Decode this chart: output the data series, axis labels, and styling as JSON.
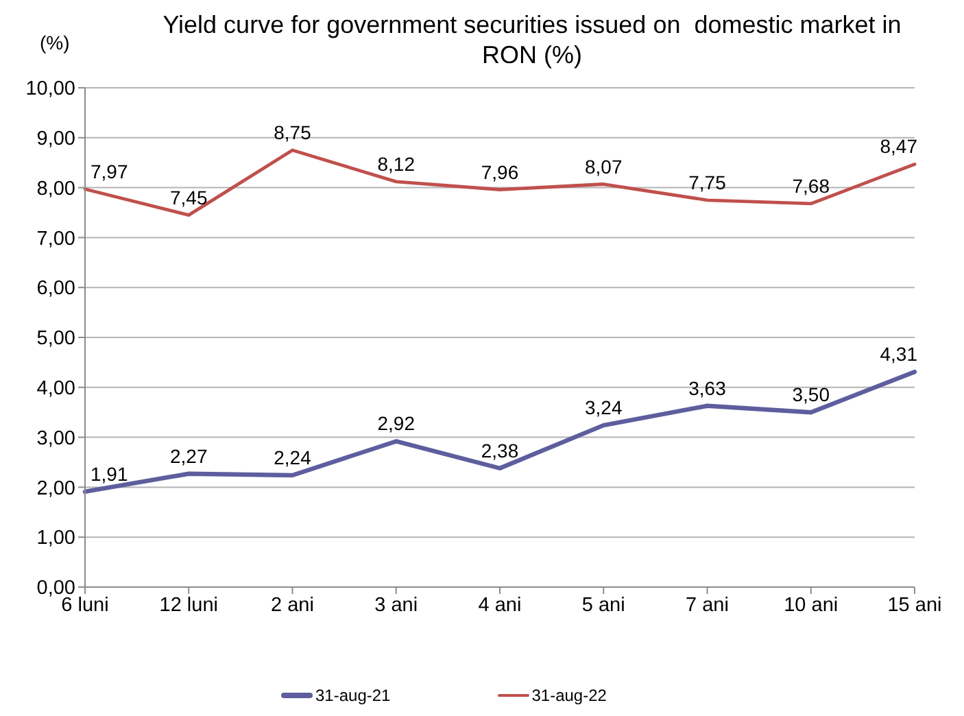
{
  "chart_data": {
    "type": "line",
    "title": "Yield curve for government securities issued on  domestic market in RON (%)",
    "ylabel": "(%)",
    "categories": [
      "6 luni",
      "12 luni",
      "2 ani",
      "3 ani",
      "4 ani",
      "5 ani",
      "7 ani",
      "10 ani",
      "15 ani"
    ],
    "series": [
      {
        "name": "31-aug-21",
        "color": "#5e5e9e",
        "values": [
          1.91,
          2.27,
          2.24,
          2.92,
          2.38,
          3.24,
          3.63,
          3.5,
          4.31
        ],
        "value_labels": [
          "1,91",
          "2,27",
          "2,24",
          "2,92",
          "2,38",
          "3,24",
          "3,63",
          "3,50",
          "4,31"
        ]
      },
      {
        "name": "31-aug-22",
        "color": "#c0504d",
        "values": [
          7.97,
          7.45,
          8.75,
          8.12,
          7.96,
          8.07,
          7.75,
          7.68,
          8.47
        ],
        "value_labels": [
          "7,97",
          "7,45",
          "8,75",
          "8,12",
          "7,96",
          "8,07",
          "7,75",
          "7,68",
          "8,47"
        ]
      }
    ],
    "ylim": [
      0,
      10
    ],
    "yticks": [
      {
        "value": 0,
        "label": "0,00"
      },
      {
        "value": 1,
        "label": "1,00"
      },
      {
        "value": 2,
        "label": "2,00"
      },
      {
        "value": 3,
        "label": "3,00"
      },
      {
        "value": 4,
        "label": "4,00"
      },
      {
        "value": 5,
        "label": "5,00"
      },
      {
        "value": 6,
        "label": "6,00"
      },
      {
        "value": 7,
        "label": "7,00"
      },
      {
        "value": 8,
        "label": "8,00"
      },
      {
        "value": 9,
        "label": "9,00"
      },
      {
        "value": 10,
        "label": "10,00"
      }
    ],
    "grid": "y",
    "legend": "bottom",
    "marker": "none",
    "line_style": "solid"
  }
}
